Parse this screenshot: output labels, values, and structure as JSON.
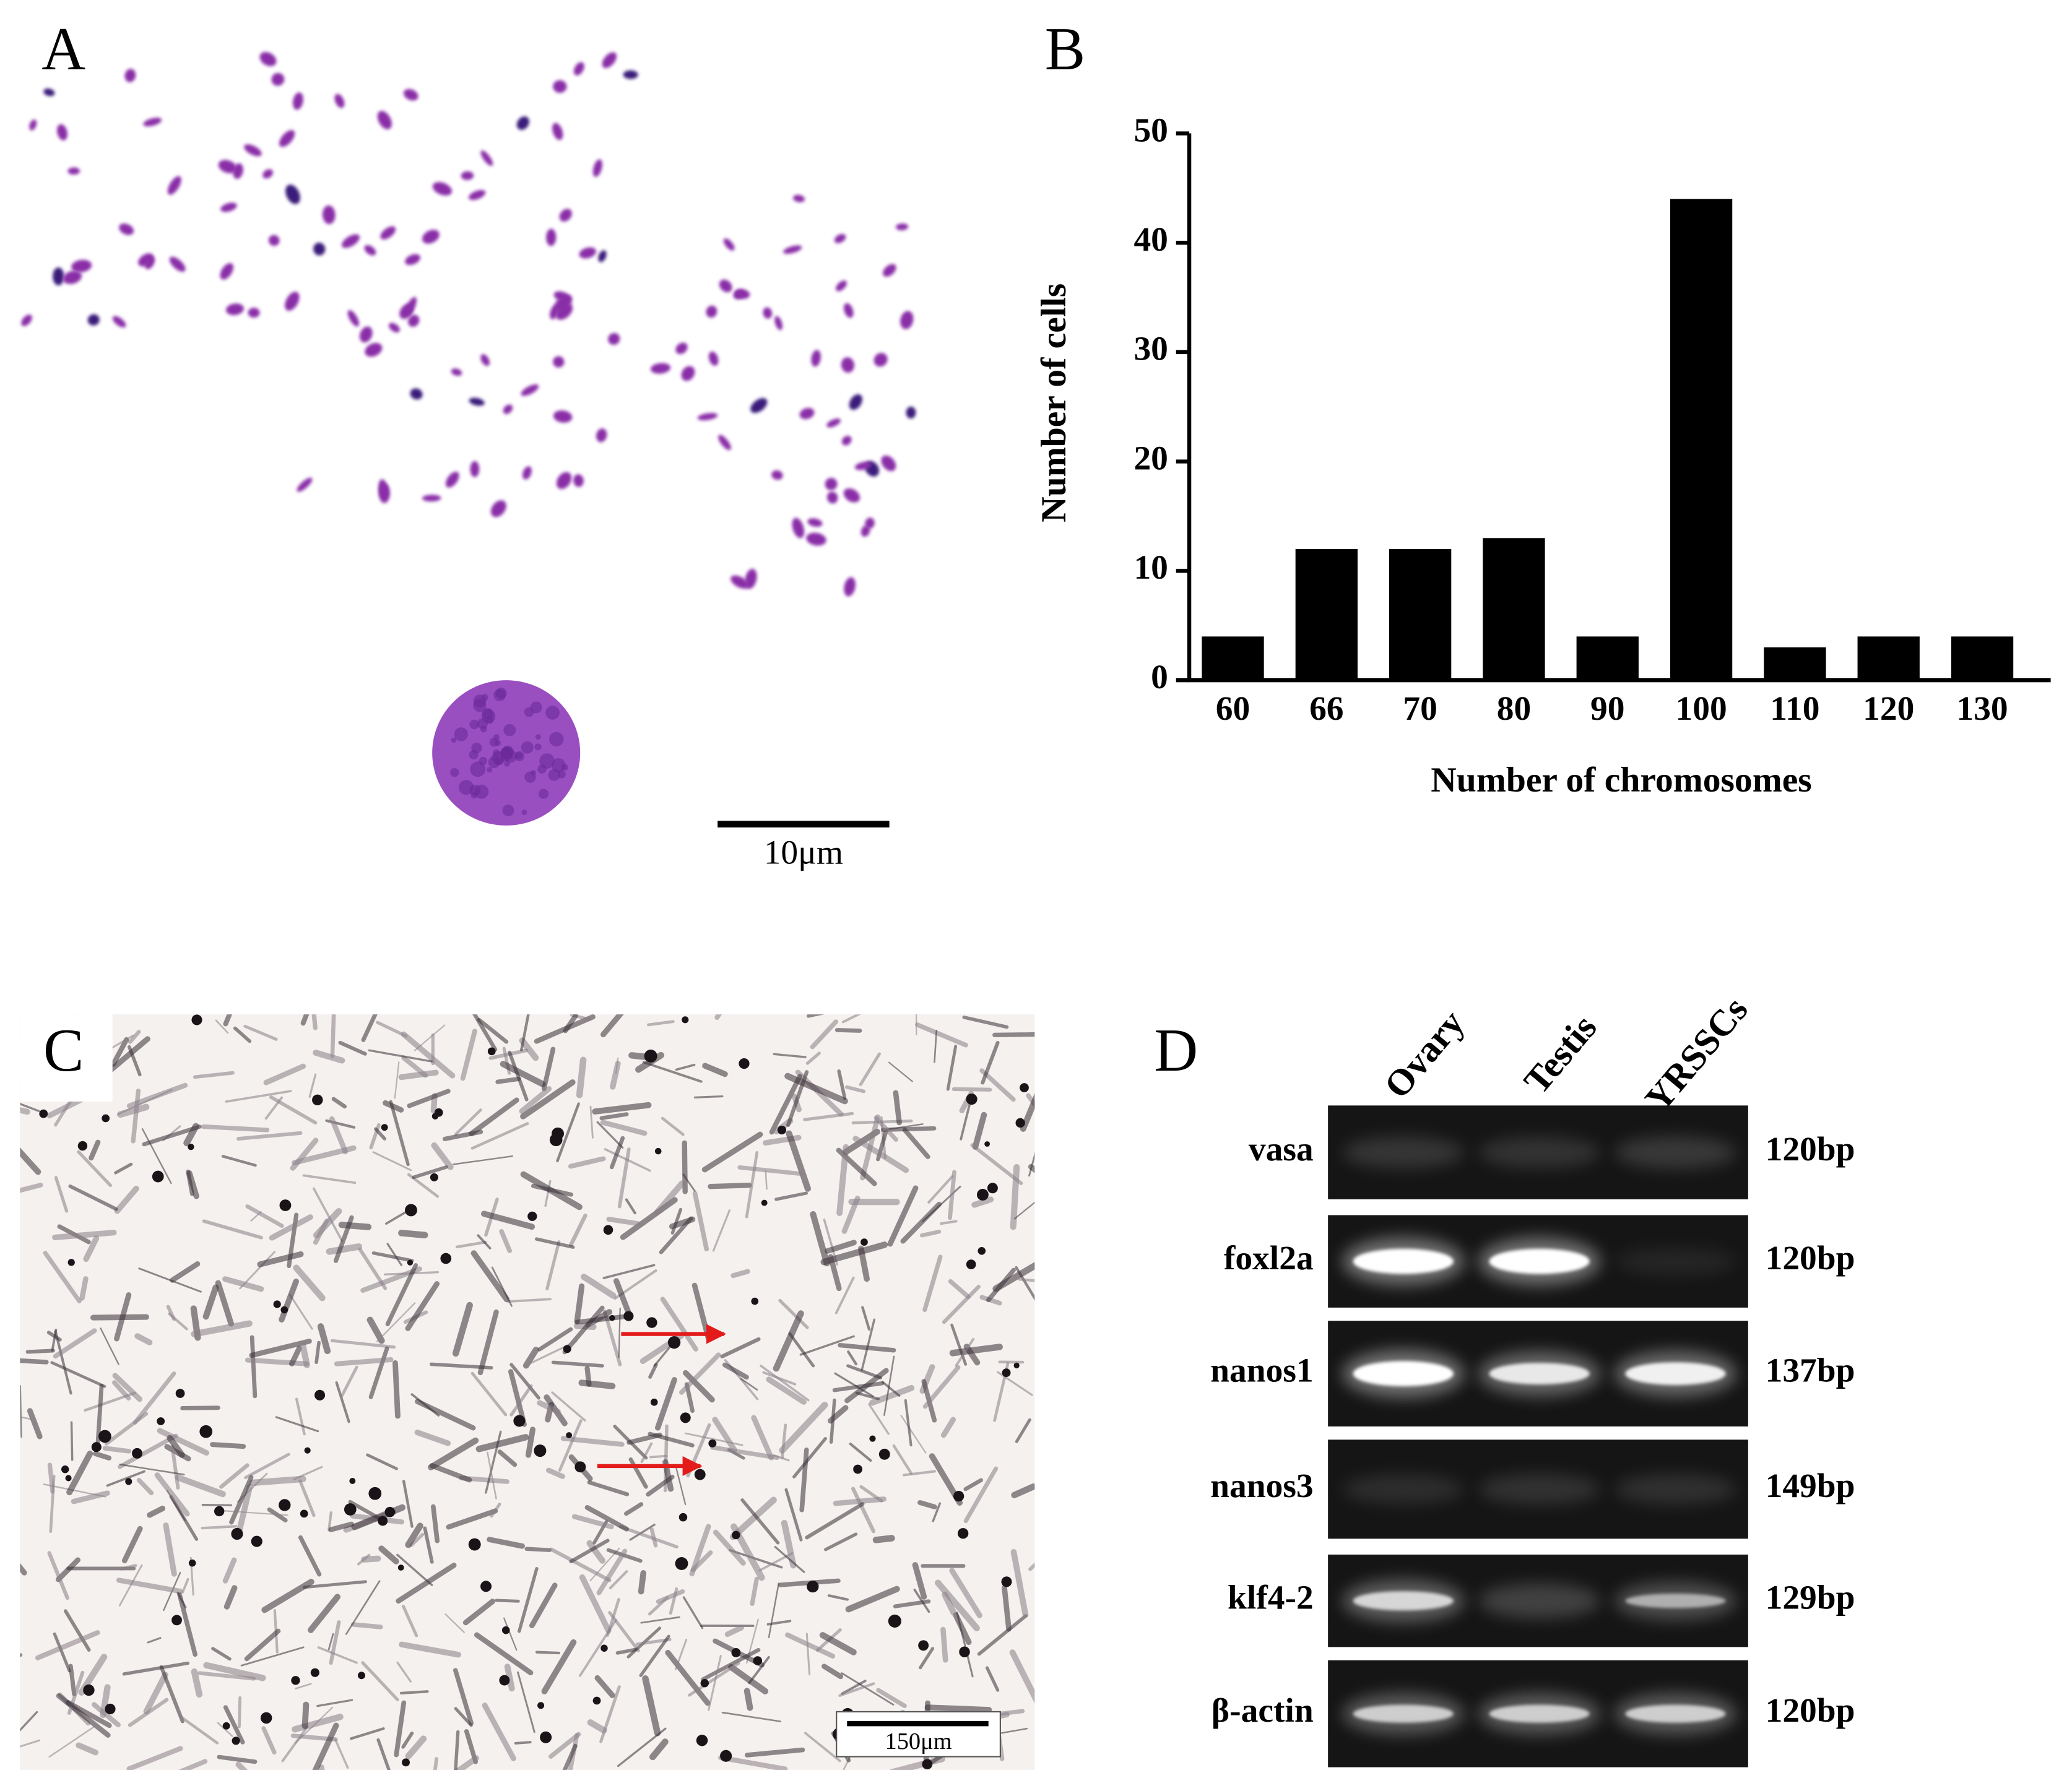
{
  "panel_labels": [
    "A",
    "B",
    "C",
    "D"
  ],
  "panel_a": {
    "scale_bar": "10μm"
  },
  "chart_data": {
    "type": "bar",
    "x_label": "Number of chromosomes",
    "y_label": "Number of cells",
    "categories": [
      "60",
      "66",
      "70",
      "80",
      "90",
      "100",
      "110",
      "120",
      "130"
    ],
    "values": [
      4,
      12,
      12,
      13,
      4,
      44,
      3,
      4,
      4
    ],
    "color": "#000000",
    "ylim": [
      0,
      50
    ],
    "yticks": [
      0,
      10,
      20,
      30,
      40,
      50
    ]
  },
  "panel_c": {
    "scale_bar": "150μm"
  },
  "panel_d": {
    "lanes": [
      "Ovary",
      "Testis",
      "YRSSCs"
    ],
    "genes": [
      {
        "name": "vasa",
        "size": "120bp"
      },
      {
        "name": "foxl2a",
        "size": "120bp"
      },
      {
        "name": "nanos1",
        "size": "137bp"
      },
      {
        "name": "nanos3",
        "size": "149bp"
      },
      {
        "name": "klf4-2",
        "size": "129bp"
      },
      {
        "name": "β-actin",
        "size": "120bp"
      }
    ]
  }
}
